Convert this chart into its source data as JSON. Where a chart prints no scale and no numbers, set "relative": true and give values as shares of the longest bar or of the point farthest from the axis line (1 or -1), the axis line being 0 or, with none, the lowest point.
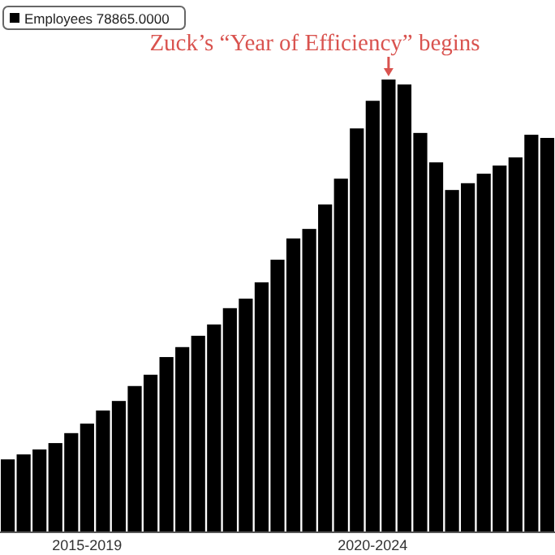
{
  "chart_data": {
    "type": "bar",
    "relative": true,
    "legend": "top left",
    "categories": [
      null,
      null,
      null,
      null,
      null,
      "2015-2019",
      null,
      null,
      null,
      null,
      null,
      null,
      null,
      null,
      null,
      null,
      null,
      null,
      null,
      null,
      null,
      null,
      null,
      "2020-2024",
      null,
      null,
      null,
      null,
      null,
      null,
      null,
      null,
      null,
      null,
      null
    ],
    "series": [
      {
        "name": "Employees 78865.0000",
        "color": "#000000",
        "values": [
          0.161,
          0.172,
          0.183,
          0.197,
          0.219,
          0.24,
          0.269,
          0.29,
          0.323,
          0.348,
          0.387,
          0.409,
          0.434,
          0.459,
          0.495,
          0.516,
          0.552,
          0.602,
          0.649,
          0.67,
          0.724,
          0.781,
          0.892,
          0.953,
          1,
          0.989,
          0.882,
          0.817,
          0.756,
          0.771,
          0.792,
          0.81,
          0.828,
          0.878,
          0.871
        ]
      }
    ],
    "annotations": [
      "Zuck’s “Year of Efficiency” begins"
    ]
  }
}
